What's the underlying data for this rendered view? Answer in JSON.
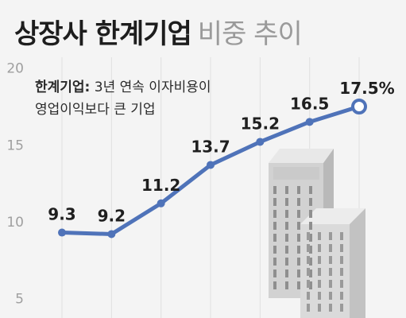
{
  "title": {
    "bold": "상장사 한계기업",
    "light": "비중 추이"
  },
  "note": {
    "bold": "한계기업:",
    "line1_rest": " 3년 연속 이자비용이",
    "line2": "영업이익보다 큰 기업"
  },
  "colors": {
    "line": "#4f73b9",
    "grid": "#e0e0e0",
    "label": "#1f1f1f",
    "tick": "#9f9f9f",
    "background": "#f4f4f4"
  },
  "chart_data": {
    "type": "line",
    "title": "상장사 한계기업 비중 추이",
    "y_ticks": [
      5,
      10,
      15,
      20
    ],
    "ylim": [
      4,
      20.5
    ],
    "grid": true,
    "series": [
      {
        "values": [
          9.3,
          9.2,
          11.2,
          13.7,
          15.2,
          16.5,
          17.5
        ],
        "labels": [
          "9.3",
          "9.2",
          "11.2",
          "13.7",
          "15.2",
          "16.5",
          "17.5%"
        ]
      }
    ]
  }
}
